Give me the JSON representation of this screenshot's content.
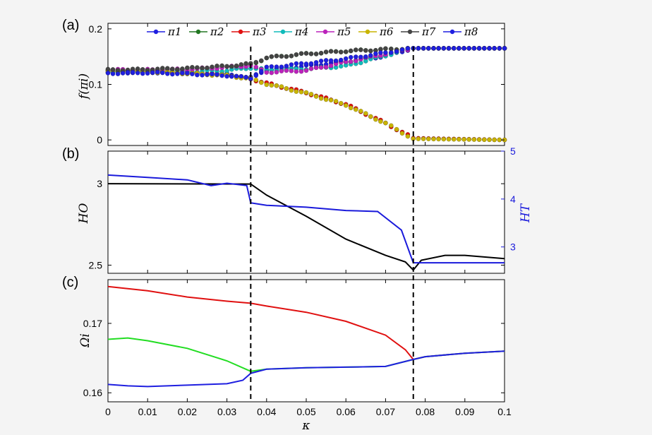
{
  "figure": {
    "panels": [
      {
        "id": "a",
        "label": "(a)",
        "ylabel": "f(πi)"
      },
      {
        "id": "b",
        "label": "(b)",
        "ylabel": "HO",
        "ylabel_right": "HT"
      },
      {
        "id": "c",
        "label": "(c)",
        "ylabel": "Ωi"
      }
    ],
    "xlabel": "κ",
    "colors": {
      "axis": "#000000",
      "right_axis": "#1a1adb",
      "background": "#ffffff"
    }
  },
  "chart_data": [
    {
      "type": "scatter",
      "panel": "a",
      "xlim": [
        0,
        0.1
      ],
      "ylim": [
        -0.01,
        0.21
      ],
      "x_ticks": [
        "0",
        "0.01",
        "0.02",
        "0.03",
        "0.04",
        "0.05",
        "0.06",
        "0.07",
        "0.08",
        "0.09",
        "0.1"
      ],
      "y_ticks": [
        "0",
        "0.1",
        "0.2"
      ],
      "y_tick_values": [
        0,
        0.1,
        0.2
      ],
      "vlines": [
        0.036,
        0.077
      ],
      "legend": {
        "placement": "top",
        "entries": [
          "π1",
          "π2",
          "π3",
          "π4",
          "π5",
          "π6",
          "π7",
          "π8"
        ]
      },
      "series": [
        {
          "name": "π1",
          "color": "#1f1fe0",
          "points": [
            [
              0,
              0.121
            ],
            [
              0.01,
              0.122
            ],
            [
              0.02,
              0.12
            ],
            [
              0.03,
              0.118
            ],
            [
              0.036,
              0.112
            ],
            [
              0.04,
              0.126
            ],
            [
              0.05,
              0.133
            ],
            [
              0.06,
              0.141
            ],
            [
              0.07,
              0.151
            ],
            [
              0.077,
              0.165
            ],
            [
              0.1,
              0.165
            ]
          ]
        },
        {
          "name": "π2",
          "color": "#227722",
          "points": [
            [
              0,
              0.125
            ],
            [
              0.01,
              0.125
            ],
            [
              0.02,
              0.128
            ],
            [
              0.03,
              0.132
            ],
            [
              0.036,
              0.135
            ],
            [
              0.04,
              0.148
            ],
            [
              0.05,
              0.155
            ],
            [
              0.06,
              0.16
            ],
            [
              0.07,
              0.163
            ],
            [
              0.077,
              0.165
            ],
            [
              0.1,
              0.165
            ]
          ]
        },
        {
          "name": "π3",
          "color": "#e01010",
          "points": [
            [
              0,
              0.124
            ],
            [
              0.01,
              0.124
            ],
            [
              0.02,
              0.121
            ],
            [
              0.03,
              0.117
            ],
            [
              0.036,
              0.11
            ],
            [
              0.04,
              0.102
            ],
            [
              0.05,
              0.085
            ],
            [
              0.06,
              0.064
            ],
            [
              0.07,
              0.03
            ],
            [
              0.077,
              0.003
            ],
            [
              0.1,
              0
            ]
          ]
        },
        {
          "name": "π4",
          "color": "#11bbbb",
          "points": [
            [
              0,
              0.123
            ],
            [
              0.01,
              0.124
            ],
            [
              0.02,
              0.123
            ],
            [
              0.03,
              0.125
            ],
            [
              0.036,
              0.13
            ],
            [
              0.04,
              0.126
            ],
            [
              0.05,
              0.128
            ],
            [
              0.06,
              0.133
            ],
            [
              0.07,
              0.152
            ],
            [
              0.077,
              0.165
            ],
            [
              0.1,
              0.165
            ]
          ]
        },
        {
          "name": "π5",
          "color": "#bb22bb",
          "points": [
            [
              0,
              0.126
            ],
            [
              0.01,
              0.126
            ],
            [
              0.02,
              0.127
            ],
            [
              0.03,
              0.131
            ],
            [
              0.036,
              0.134
            ],
            [
              0.04,
              0.122
            ],
            [
              0.05,
              0.125
            ],
            [
              0.06,
              0.14
            ],
            [
              0.07,
              0.155
            ],
            [
              0.077,
              0.165
            ],
            [
              0.1,
              0.165
            ]
          ]
        },
        {
          "name": "π6",
          "color": "#c8b400",
          "points": [
            [
              0,
              0.124
            ],
            [
              0.01,
              0.123
            ],
            [
              0.02,
              0.12
            ],
            [
              0.03,
              0.116
            ],
            [
              0.036,
              0.11
            ],
            [
              0.04,
              0.101
            ],
            [
              0.05,
              0.084
            ],
            [
              0.06,
              0.063
            ],
            [
              0.07,
              0.03
            ],
            [
              0.077,
              0.002
            ],
            [
              0.1,
              0
            ]
          ]
        },
        {
          "name": "π7",
          "color": "#444444",
          "points": [
            [
              0,
              0.126
            ],
            [
              0.01,
              0.127
            ],
            [
              0.02,
              0.129
            ],
            [
              0.03,
              0.133
            ],
            [
              0.036,
              0.137
            ],
            [
              0.04,
              0.148
            ],
            [
              0.05,
              0.155
            ],
            [
              0.06,
              0.16
            ],
            [
              0.07,
              0.163
            ],
            [
              0.077,
              0.165
            ],
            [
              0.1,
              0.165
            ]
          ]
        },
        {
          "name": "π8",
          "color": "#1f1fe0",
          "points": [
            [
              0,
              0.12
            ],
            [
              0.01,
              0.121
            ],
            [
              0.02,
              0.119
            ],
            [
              0.03,
              0.116
            ],
            [
              0.036,
              0.111
            ],
            [
              0.04,
              0.13
            ],
            [
              0.05,
              0.138
            ],
            [
              0.06,
              0.146
            ],
            [
              0.07,
              0.157
            ],
            [
              0.077,
              0.165
            ],
            [
              0.1,
              0.165
            ]
          ]
        }
      ]
    },
    {
      "type": "line",
      "panel": "b",
      "xlim": [
        0,
        0.1
      ],
      "ylim": [
        2.45,
        3.2
      ],
      "y_ticks": [
        "2.5",
        "3"
      ],
      "y_tick_values": [
        2.5,
        3
      ],
      "y2lim": [
        2.45,
        5.0
      ],
      "y2_ticks": [
        "3",
        "4",
        "5"
      ],
      "y2_tick_values": [
        3,
        4,
        5
      ],
      "vlines": [
        0.036,
        0.077
      ],
      "series": [
        {
          "name": "HO",
          "axis": "left",
          "color": "#000000",
          "points": [
            [
              0,
              3.0
            ],
            [
              0.036,
              2.998
            ],
            [
              0.04,
              2.93
            ],
            [
              0.05,
              2.8
            ],
            [
              0.06,
              2.66
            ],
            [
              0.07,
              2.56
            ],
            [
              0.075,
              2.52
            ],
            [
              0.077,
              2.47
            ],
            [
              0.079,
              2.53
            ],
            [
              0.085,
              2.56
            ],
            [
              0.09,
              2.56
            ],
            [
              0.1,
              2.54
            ]
          ]
        },
        {
          "name": "HT",
          "axis": "right",
          "color": "#1a1adb",
          "points": [
            [
              0,
              4.5
            ],
            [
              0.01,
              4.45
            ],
            [
              0.02,
              4.4
            ],
            [
              0.026,
              4.28
            ],
            [
              0.03,
              4.33
            ],
            [
              0.035,
              4.28
            ],
            [
              0.036,
              3.92
            ],
            [
              0.04,
              3.87
            ],
            [
              0.05,
              3.83
            ],
            [
              0.06,
              3.76
            ],
            [
              0.068,
              3.74
            ],
            [
              0.074,
              3.35
            ],
            [
              0.077,
              2.67
            ],
            [
              0.08,
              2.67
            ],
            [
              0.1,
              2.67
            ]
          ]
        }
      ]
    },
    {
      "type": "line",
      "panel": "c",
      "xlim": [
        0,
        0.1
      ],
      "ylim": [
        0.1587,
        0.1763
      ],
      "y_ticks": [
        "0.16",
        "0.17"
      ],
      "y_tick_values": [
        0.16,
        0.17
      ],
      "vlines": [
        0.036,
        0.077
      ],
      "series": [
        {
          "color": "#e01010",
          "points": [
            [
              0,
              0.1753
            ],
            [
              0.01,
              0.1747
            ],
            [
              0.02,
              0.1738
            ],
            [
              0.03,
              0.1732
            ],
            [
              0.036,
              0.1729
            ],
            [
              0.04,
              0.1725
            ],
            [
              0.05,
              0.1716
            ],
            [
              0.06,
              0.1703
            ],
            [
              0.07,
              0.1683
            ],
            [
              0.075,
              0.1662
            ],
            [
              0.077,
              0.1648
            ],
            [
              0.08,
              0.1652
            ],
            [
              0.09,
              0.1657
            ],
            [
              0.1,
              0.166
            ]
          ]
        },
        {
          "color": "#22dd22",
          "points": [
            [
              0,
              0.1677
            ],
            [
              0.005,
              0.1679
            ],
            [
              0.01,
              0.1675
            ],
            [
              0.02,
              0.1664
            ],
            [
              0.03,
              0.1646
            ],
            [
              0.036,
              0.1631
            ],
            [
              0.04,
              0.1634
            ],
            [
              0.05,
              0.1636
            ],
            [
              0.06,
              0.1637
            ],
            [
              0.07,
              0.1638
            ],
            [
              0.077,
              0.1648
            ],
            [
              0.08,
              0.1652
            ],
            [
              0.09,
              0.1657
            ],
            [
              0.1,
              0.166
            ]
          ]
        },
        {
          "color": "#1f1fe0",
          "points": [
            [
              0,
              0.1612
            ],
            [
              0.005,
              0.161
            ],
            [
              0.01,
              0.1609
            ],
            [
              0.02,
              0.1611
            ],
            [
              0.03,
              0.1613
            ],
            [
              0.034,
              0.1618
            ],
            [
              0.036,
              0.1628
            ],
            [
              0.04,
              0.1634
            ],
            [
              0.05,
              0.1636
            ],
            [
              0.06,
              0.1637
            ],
            [
              0.07,
              0.1638
            ],
            [
              0.077,
              0.1648
            ],
            [
              0.08,
              0.1652
            ],
            [
              0.09,
              0.1657
            ],
            [
              0.1,
              0.166
            ]
          ]
        }
      ]
    }
  ]
}
